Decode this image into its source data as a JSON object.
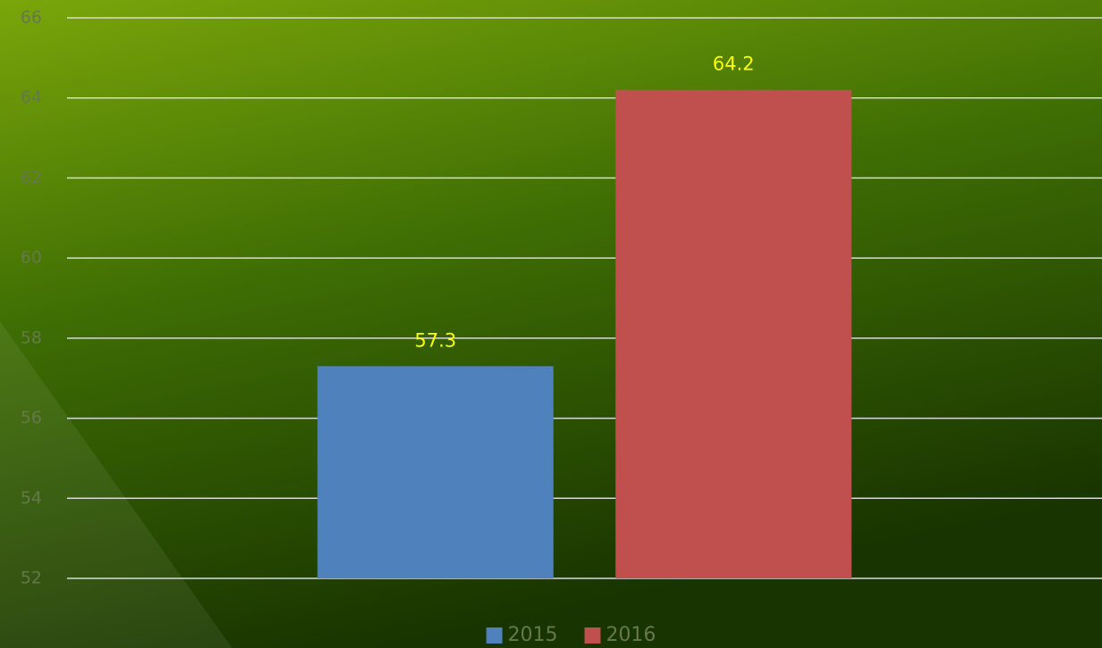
{
  "chart_data": {
    "type": "bar",
    "categories": [
      null
    ],
    "series": [
      {
        "name": "2015",
        "color": "#4f81bd",
        "values": [
          57.3
        ]
      },
      {
        "name": "2016",
        "color": "#c0504d",
        "values": [
          64.2
        ]
      }
    ],
    "ylim": [
      52,
      66
    ],
    "yticks": [
      52,
      54,
      56,
      58,
      60,
      62,
      64,
      66
    ],
    "grid": true,
    "data_labels": true,
    "legend": "bottom"
  }
}
